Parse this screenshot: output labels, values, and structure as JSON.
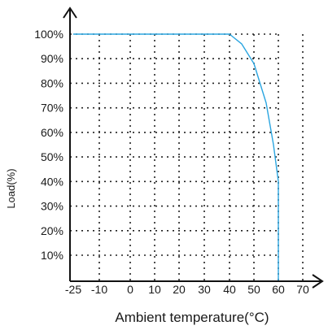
{
  "chart_data": {
    "type": "line",
    "xlabel": "Ambient temperature(°C)",
    "ylabel": "Load(%)",
    "x_ticks": [
      -25,
      -10,
      0,
      10,
      20,
      30,
      40,
      50,
      60,
      70
    ],
    "x_tick_labels": [
      "-25",
      "-10",
      "0",
      "10",
      "20",
      "30",
      "40",
      "50",
      "60",
      "70"
    ],
    "y_ticks": [
      10,
      20,
      30,
      40,
      50,
      60,
      70,
      80,
      90,
      100
    ],
    "y_tick_labels": [
      "10%",
      "20%",
      "30%",
      "40%",
      "50%",
      "60%",
      "70%",
      "80%",
      "90%",
      "100%"
    ],
    "xlim": [
      -25,
      70
    ],
    "ylim": [
      0,
      100
    ],
    "grid": true,
    "series": [
      {
        "color": "#2aa5e0",
        "x": [
          -25,
          40,
          45,
          50,
          55,
          58,
          60,
          60
        ],
        "y": [
          100,
          100,
          96,
          88,
          72,
          55,
          40,
          0
        ]
      }
    ],
    "axis_color": "#111111",
    "grid_color": "#222222"
  }
}
